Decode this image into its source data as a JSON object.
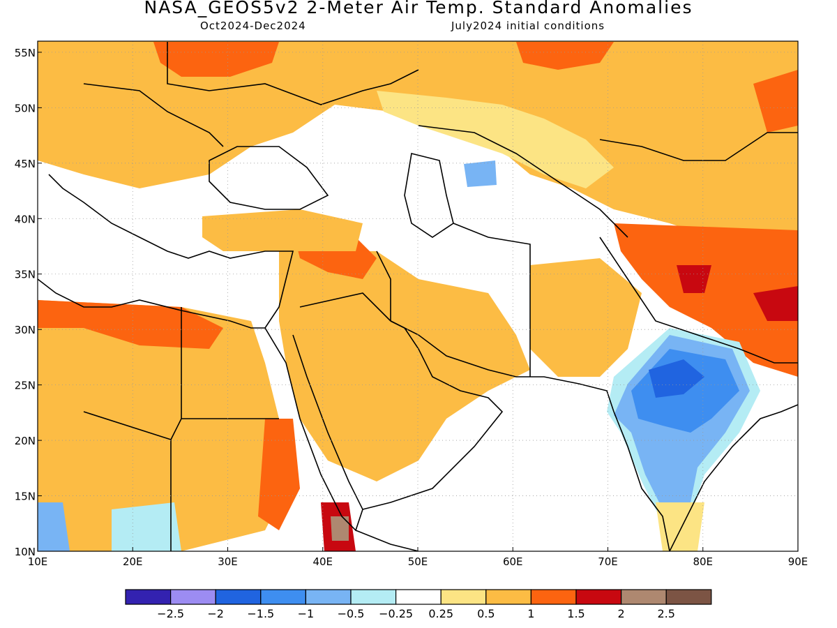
{
  "title": "NASA_GEOS5v2 2-Meter Air Temp. Standard Anomalies",
  "period": "Oct2024-Dec2024",
  "init": "July2024 initial conditions",
  "map": {
    "lon_range": [
      10,
      90
    ],
    "lat_range": [
      10,
      56
    ],
    "lon_ticks": [
      {
        "value": 10,
        "label": "10E"
      },
      {
        "value": 20,
        "label": "20E"
      },
      {
        "value": 30,
        "label": "30E"
      },
      {
        "value": 40,
        "label": "40E"
      },
      {
        "value": 50,
        "label": "50E"
      },
      {
        "value": 60,
        "label": "60E"
      },
      {
        "value": 70,
        "label": "70E"
      },
      {
        "value": 80,
        "label": "80E"
      },
      {
        "value": 90,
        "label": "90E"
      }
    ],
    "lat_ticks": [
      {
        "value": 10,
        "label": "10N"
      },
      {
        "value": 15,
        "label": "15N"
      },
      {
        "value": 20,
        "label": "20N"
      },
      {
        "value": 25,
        "label": "25N"
      },
      {
        "value": 30,
        "label": "30N"
      },
      {
        "value": 35,
        "label": "35N"
      },
      {
        "value": 40,
        "label": "40N"
      },
      {
        "value": 45,
        "label": "45N"
      },
      {
        "value": 50,
        "label": "50N"
      },
      {
        "value": 55,
        "label": "55N"
      }
    ],
    "gridlines": "dotted"
  },
  "colorbar": {
    "colors": [
      "#3322b0",
      "#9c8cf2",
      "#2064e0",
      "#3e8ef0",
      "#78b4f4",
      "#b4ecf4",
      "#ffffff",
      "#fce484",
      "#fcbc44",
      "#fc6410",
      "#c80810",
      "#ae8870",
      "#7c5444"
    ],
    "labels": [
      "-2.5",
      "-2",
      "-1.5",
      "-1",
      "-0.5",
      "-0.25",
      "0.25",
      "0.5",
      "1",
      "1.5",
      "2",
      "2.5"
    ]
  }
}
